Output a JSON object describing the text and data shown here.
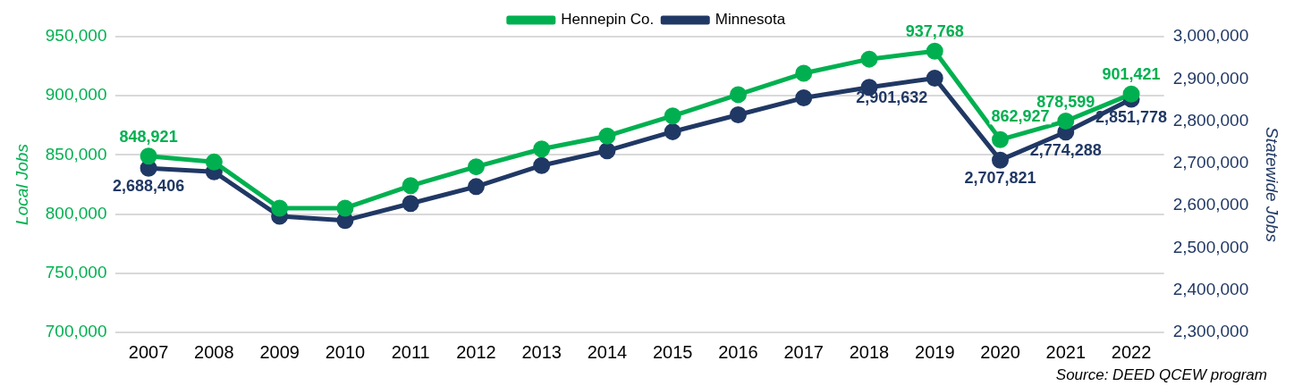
{
  "chart_data": {
    "type": "line",
    "categories": [
      "2007",
      "2008",
      "2009",
      "2010",
      "2011",
      "2012",
      "2013",
      "2014",
      "2015",
      "2016",
      "2017",
      "2018",
      "2019",
      "2020",
      "2021",
      "2022"
    ],
    "series": [
      {
        "name": "Hennepin Co.",
        "color": "#00b050",
        "values": [
          848921,
          844000,
          805000,
          805000,
          824000,
          840000,
          855000,
          866000,
          883000,
          901000,
          919000,
          931000,
          937768,
          862927,
          878599,
          901421
        ],
        "value_labels": [
          "848,921",
          null,
          null,
          null,
          null,
          null,
          null,
          null,
          null,
          null,
          null,
          null,
          "937,768",
          "862,927",
          "878,599",
          "901,421"
        ]
      },
      {
        "name": "Minnesota",
        "color": "#203864",
        "axis": "y2",
        "values": [
          2688406,
          2680000,
          2575000,
          2565000,
          2605000,
          2645000,
          2695000,
          2730000,
          2775000,
          2815000,
          2855000,
          2880000,
          2901632,
          2707821,
          2774288,
          2851778
        ],
        "value_labels": [
          "2,688,406",
          null,
          null,
          null,
          null,
          null,
          null,
          null,
          null,
          null,
          null,
          null,
          "2,901,632",
          "2,707,821",
          "2,774,288",
          "2,851,778"
        ]
      }
    ],
    "ylabel": "Local Jobs",
    "y2label": "Statewide Jobs",
    "ylim": [
      700000,
      950000
    ],
    "yticks": [
      {
        "value": 700000,
        "label": "700,000"
      },
      {
        "value": 750000,
        "label": "750,000"
      },
      {
        "value": 800000,
        "label": "800,000"
      },
      {
        "value": 850000,
        "label": "850,000"
      },
      {
        "value": 900000,
        "label": "900,000"
      },
      {
        "value": 950000,
        "label": "950,000"
      }
    ],
    "y2lim": [
      2300000,
      3000000
    ],
    "y2ticks": [
      {
        "value": 2300000,
        "label": "2,300,000"
      },
      {
        "value": 2400000,
        "label": "2,400,000"
      },
      {
        "value": 2500000,
        "label": "2,500,000"
      },
      {
        "value": 2600000,
        "label": "2,600,000"
      },
      {
        "value": 2700000,
        "label": "2,700,000"
      },
      {
        "value": 2800000,
        "label": "2,800,000"
      },
      {
        "value": 2900000,
        "label": "2,900,000"
      },
      {
        "value": 3000000,
        "label": "3,000,000"
      }
    ],
    "grid": "y",
    "legend": "top",
    "marker": "circle",
    "line_style": "solid",
    "annotations": [
      "Source: DEED QCEW program"
    ]
  }
}
